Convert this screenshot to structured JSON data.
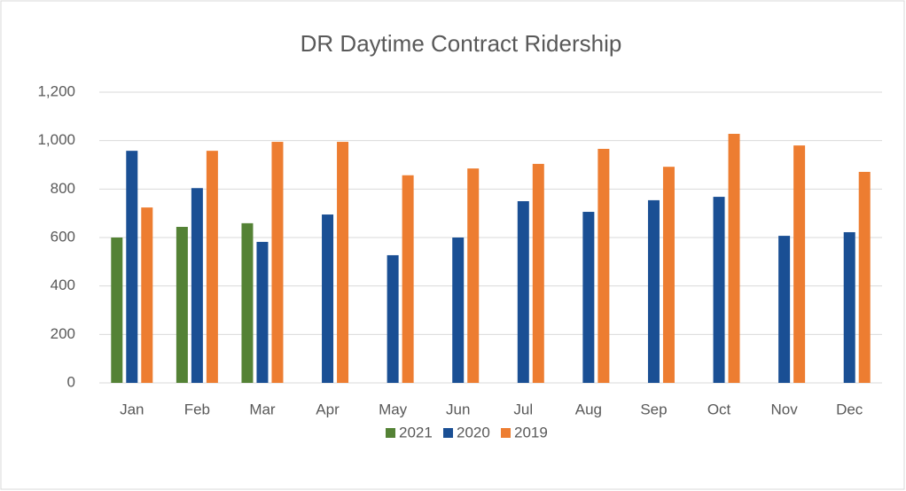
{
  "chart_data": {
    "type": "bar",
    "title": "DR Daytime Contract Ridership",
    "categories": [
      "Jan",
      "Feb",
      "Mar",
      "Apr",
      "May",
      "Jun",
      "Jul",
      "Aug",
      "Sep",
      "Oct",
      "Nov",
      "Dec"
    ],
    "series": [
      {
        "name": "2021",
        "color": "#548235",
        "values": [
          600,
          644,
          659,
          null,
          null,
          null,
          null,
          null,
          null,
          null,
          null,
          null
        ]
      },
      {
        "name": "2020",
        "color": "#1a4f94",
        "values": [
          958,
          804,
          582,
          695,
          527,
          600,
          750,
          706,
          754,
          768,
          607,
          622
        ]
      },
      {
        "name": "2019",
        "color": "#ed7d31",
        "values": [
          724,
          958,
          995,
          995,
          857,
          885,
          904,
          966,
          892,
          1028,
          980,
          871
        ]
      }
    ],
    "ylim": [
      0,
      1200
    ],
    "yticks": [
      0,
      200,
      400,
      600,
      800,
      {
        "value": 1000,
        "label": "1,000"
      },
      {
        "value": 1200,
        "label": "1,200"
      }
    ],
    "grid": true,
    "legend": "bottom"
  }
}
